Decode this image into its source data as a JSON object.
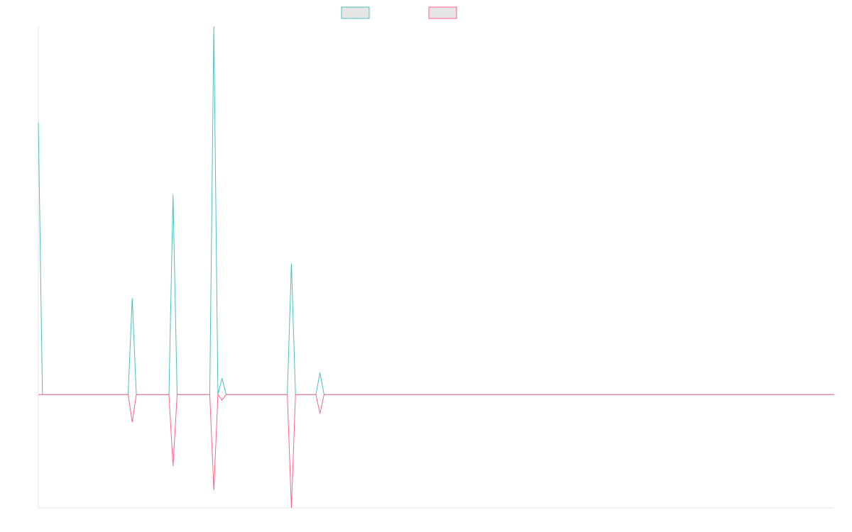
{
  "chart_data": {
    "type": "line",
    "categories": [
      null,
      null,
      null,
      null,
      null,
      null,
      null,
      null,
      null,
      null,
      null,
      null,
      null,
      null,
      null,
      null,
      null,
      null,
      null,
      null,
      null,
      null,
      null,
      null,
      null,
      null,
      null,
      null,
      null,
      null,
      null,
      null,
      null,
      null,
      null,
      null,
      null,
      null,
      null,
      null,
      null,
      null,
      null,
      null,
      null,
      null,
      null,
      null,
      null,
      null,
      null,
      null,
      null,
      null,
      null,
      null,
      null,
      null,
      null,
      null,
      null,
      null,
      null,
      null,
      null,
      null,
      null,
      null,
      null,
      null,
      null,
      null,
      null,
      null,
      null,
      null,
      null,
      null,
      null,
      null,
      null,
      null,
      null,
      null,
      null,
      null,
      null,
      null,
      null,
      null,
      null,
      null,
      null,
      null,
      null,
      null,
      null,
      null,
      null,
      null,
      null,
      null,
      null,
      null,
      null,
      null,
      null,
      null,
      null,
      null,
      null,
      null,
      null,
      null,
      null,
      null,
      null,
      null,
      null,
      null,
      null,
      null,
      null,
      null,
      null,
      null,
      null,
      null,
      null,
      null,
      null,
      null,
      null,
      null,
      null,
      null,
      null,
      null,
      null,
      null,
      null,
      null,
      null,
      null,
      null,
      null,
      null,
      null,
      null,
      null,
      null,
      null,
      null,
      null,
      null,
      null,
      null,
      null,
      null,
      null,
      null,
      null,
      null,
      null,
      null,
      null,
      null,
      null,
      null,
      null,
      null,
      null,
      null,
      null,
      null,
      null,
      null,
      null,
      null,
      null,
      null,
      null,
      null,
      null,
      null,
      null,
      null,
      null,
      null,
      null,
      null,
      null,
      null,
      null,
      null,
      null
    ],
    "series": [
      {
        "color": "#4bc0c0",
        "values": [
          38.4,
          0,
          0,
          0,
          0,
          0,
          0,
          0,
          0,
          0,
          0,
          0,
          0,
          0,
          0,
          0,
          0,
          0,
          0,
          0,
          0,
          0,
          0,
          13.6,
          0,
          0,
          0,
          0,
          0,
          0,
          0,
          0,
          0,
          28.2,
          0,
          0,
          0,
          0,
          0,
          0,
          0,
          0,
          0,
          52,
          0,
          2.3,
          0,
          0,
          0,
          0,
          0,
          0,
          0,
          0,
          0,
          0,
          0,
          0,
          0,
          0,
          0,
          0,
          18.5,
          0,
          0,
          0,
          0,
          0,
          0,
          3.1,
          0,
          0,
          0,
          0,
          0,
          0,
          0,
          0,
          0,
          0,
          0,
          0,
          0,
          0,
          0,
          0,
          0,
          0,
          0,
          0,
          0,
          0,
          0,
          0,
          0,
          0,
          0,
          0,
          0,
          0,
          0,
          0,
          0,
          0,
          0,
          0,
          0,
          0,
          0,
          0,
          0,
          0,
          0,
          0,
          0,
          0,
          0,
          0,
          0,
          0,
          0,
          0,
          0,
          0,
          0,
          0,
          0,
          0,
          0,
          0,
          0,
          0,
          0,
          0,
          0,
          0,
          0,
          0,
          0,
          0,
          0,
          0,
          0,
          0,
          0,
          0,
          0,
          0,
          0,
          0,
          0,
          0,
          0,
          0,
          0,
          0,
          0,
          0,
          0,
          0,
          0,
          0,
          0,
          0,
          0,
          0,
          0,
          0,
          0,
          0,
          0,
          0,
          0,
          0,
          0,
          0,
          0,
          0,
          0,
          0,
          0,
          0,
          0,
          0,
          0,
          0,
          0,
          0,
          0,
          0,
          0,
          0,
          0,
          0,
          0,
          0
        ]
      },
      {
        "color": "#ff6384",
        "values": [
          0,
          0,
          0,
          0,
          0,
          0,
          0,
          0,
          0,
          0,
          0,
          0,
          0,
          0,
          0,
          0,
          0,
          0,
          0,
          0,
          0,
          0,
          0,
          -3.9,
          0,
          0,
          0,
          0,
          0,
          0,
          0,
          0,
          0,
          -10.1,
          0,
          0,
          0,
          0,
          0,
          0,
          0,
          0,
          0,
          -13.5,
          0,
          -0.8,
          0,
          0,
          0,
          0,
          0,
          0,
          0,
          0,
          0,
          0,
          0,
          0,
          0,
          0,
          0,
          0,
          -16,
          0,
          0,
          0,
          0,
          0,
          0,
          -2.7,
          0,
          0,
          0,
          0,
          0,
          0,
          0,
          0,
          0,
          0,
          0,
          0,
          0,
          0,
          0,
          0,
          0,
          0,
          0,
          0,
          0,
          0,
          0,
          0,
          0,
          0,
          0,
          0,
          0,
          0,
          0,
          0,
          0,
          0,
          0,
          0,
          0,
          0,
          0,
          0,
          0,
          0,
          0,
          0,
          0,
          0,
          0,
          0,
          0,
          0,
          0,
          0,
          0,
          0,
          0,
          0,
          0,
          0,
          0,
          0,
          0,
          0,
          0,
          0,
          0,
          0,
          0,
          0,
          0,
          0,
          0,
          0,
          0,
          0,
          0,
          0,
          0,
          0,
          0,
          0,
          0,
          0,
          0,
          0,
          0,
          0,
          0,
          0,
          0,
          0,
          0,
          0,
          0,
          0,
          0,
          0,
          0,
          0,
          0,
          0,
          0,
          0,
          0,
          0,
          0,
          0,
          0,
          0,
          0,
          0,
          0,
          0,
          0,
          0,
          0,
          0,
          0,
          0,
          0,
          0,
          0,
          0,
          0,
          0,
          0,
          0
        ]
      }
    ],
    "ylim": [
      -16,
      52
    ]
  }
}
